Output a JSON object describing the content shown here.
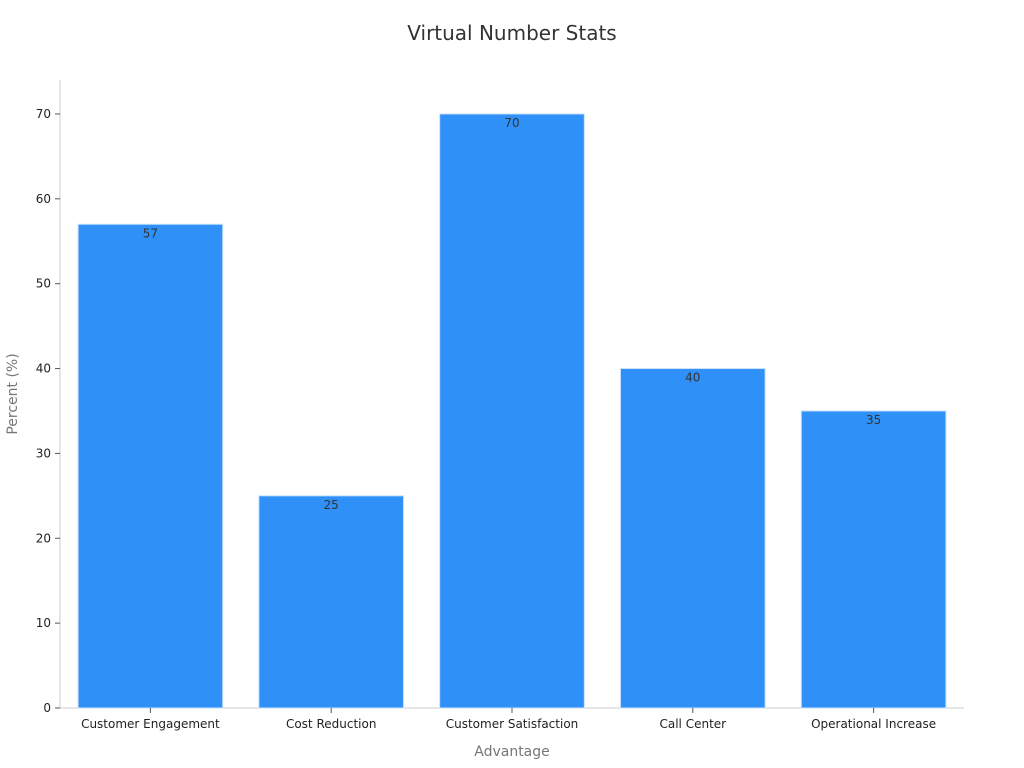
{
  "chart_data": {
    "type": "bar",
    "title": "Virtual Number Stats",
    "xlabel": "Advantage",
    "ylabel": "Percent (%)",
    "categories": [
      "Customer Engagement",
      "Cost Reduction",
      "Customer Satisfaction",
      "Call Center",
      "Operational Increase"
    ],
    "values": [
      57,
      25,
      70,
      40,
      35
    ],
    "ylim": [
      0,
      74
    ],
    "yticks": [
      0,
      10,
      20,
      30,
      40,
      50,
      60,
      70
    ],
    "grid": false,
    "legend": "none",
    "bar_color": "#2f91f7",
    "bar_edge_color": "#c8e0fb",
    "axis_color": "#cccccc"
  }
}
